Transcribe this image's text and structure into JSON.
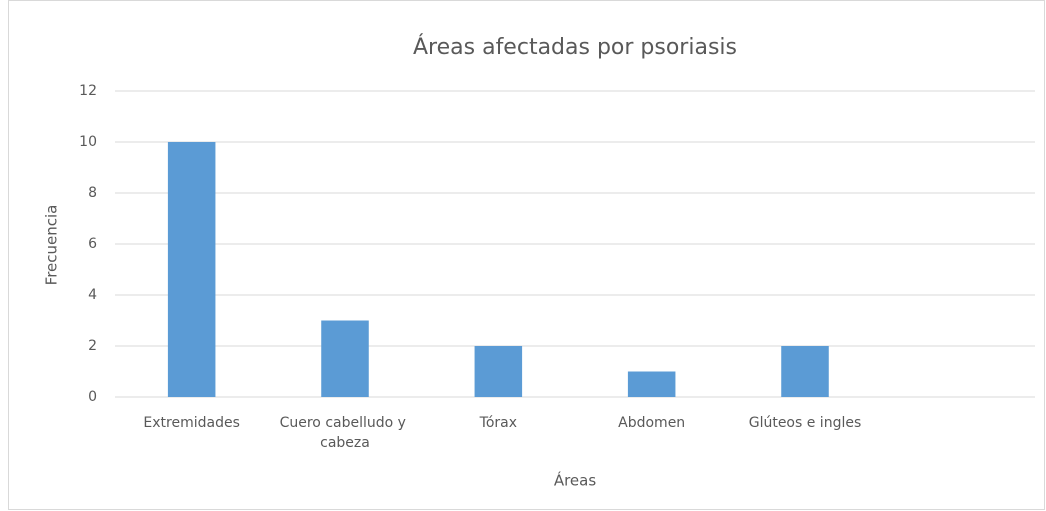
{
  "chart_data": {
    "type": "bar",
    "title": "Áreas afectadas por psoriasis",
    "x_label": "Áreas",
    "y_label": "Frecuencia",
    "categories": [
      "Extremidades",
      "Cuero cabelludo y cabeza",
      "Tórax",
      "Abdomen",
      "Glúteos e ingles",
      null
    ],
    "values": [
      10,
      3,
      2,
      1,
      2,
      null
    ],
    "color": "#5b9bd5",
    "ylim": [
      0,
      12
    ],
    "yticks": [
      0,
      2,
      4,
      6,
      8,
      10,
      12
    ],
    "grid": true
  }
}
